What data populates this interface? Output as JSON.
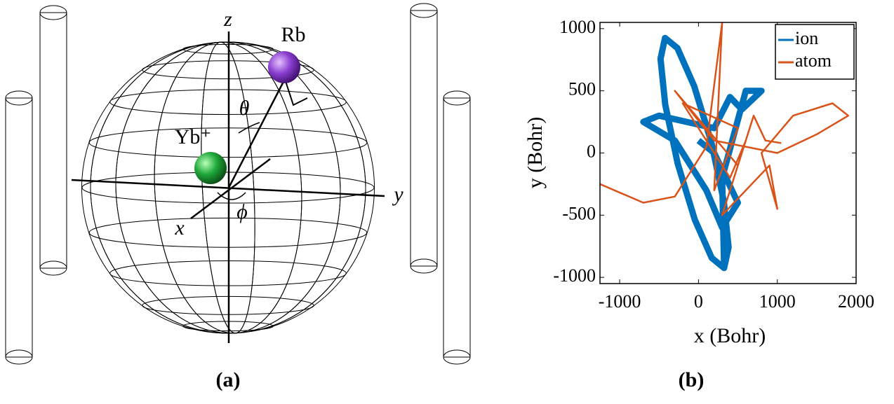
{
  "panel_a": {
    "z_label": "z",
    "y_label": "y",
    "x_label": "x",
    "rb_label": "Rb",
    "yb_label": "Yb⁺",
    "theta_label": "θ",
    "phi_label": "ϕ",
    "panel_label": "(a)"
  },
  "chart_data": {
    "type": "line",
    "panel_label": "(b)",
    "xlabel": "x (Bohr)",
    "ylabel": "y (Bohr)",
    "xlim": [
      -1250,
      2000
    ],
    "ylim": [
      -1050,
      1050
    ],
    "xticks": [
      -1000,
      0,
      1000,
      2000
    ],
    "yticks": [
      -1000,
      -500,
      0,
      500,
      1000
    ],
    "legend": "upper right",
    "series": [
      {
        "name": "ion",
        "color": "#0072BD",
        "x": [
          325,
          382,
          322,
          163,
          -54,
          -268,
          -425,
          -482,
          -422,
          -263,
          -46,
          168,
          325,
          300,
          600,
          800,
          550,
          400,
          200,
          -500,
          -700,
          -300,
          100,
          300,
          500,
          200,
          0
        ],
        "values": [
          -925,
          -758,
          -389,
          86,
          537,
          844,
          925,
          758,
          389,
          -86,
          -537,
          -844,
          -925,
          -200,
          500,
          500,
          350,
          450,
          200,
          300,
          250,
          100,
          -300,
          -600,
          -400,
          0,
          100
        ]
      },
      {
        "name": "atom",
        "color": "#D95319",
        "x": [
          -1250,
          -700,
          -300,
          100,
          300,
          200,
          500,
          -200,
          400,
          600,
          300,
          900,
          1000,
          800,
          1200,
          1700,
          1900,
          1500,
          1000,
          200,
          -300,
          500,
          700,
          850,
          1050
        ],
        "values": [
          -250,
          -400,
          -350,
          50,
          1050,
          -300,
          200,
          400,
          -200,
          100,
          -500,
          -100,
          -450,
          0,
          300,
          400,
          300,
          150,
          0,
          100,
          500,
          -100,
          300,
          100,
          80
        ]
      }
    ]
  }
}
